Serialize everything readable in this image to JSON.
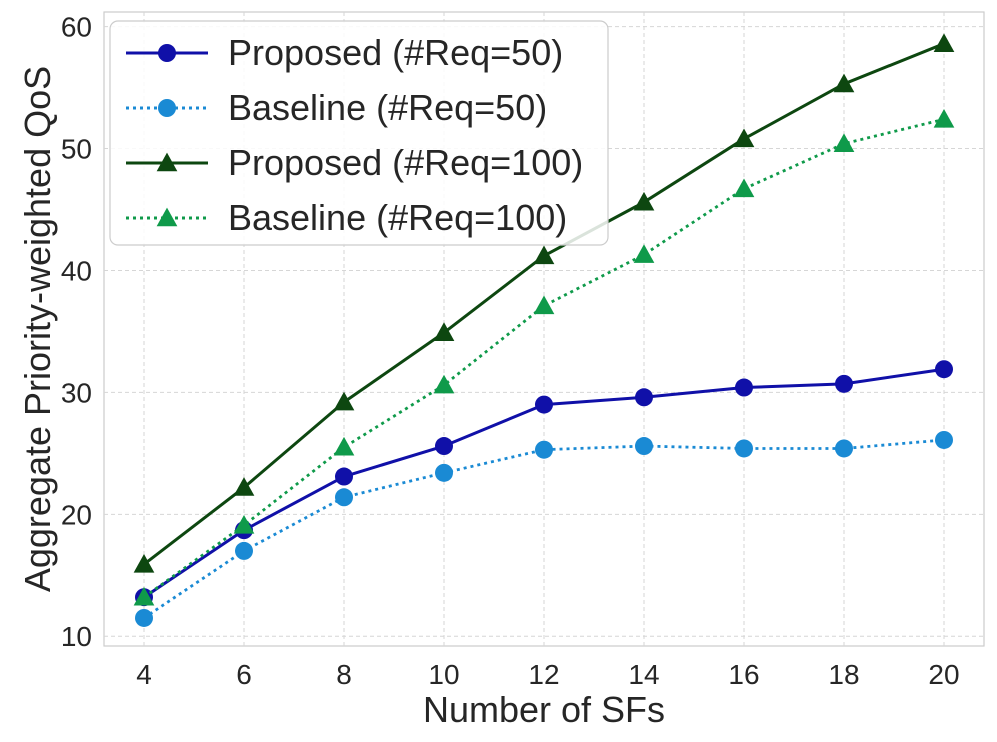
{
  "chart_data": {
    "type": "line",
    "title": "",
    "xlabel": "Number of SFs",
    "ylabel": "Aggregate Priority-weighted QoS",
    "x": [
      4,
      6,
      8,
      10,
      12,
      14,
      16,
      18,
      20
    ],
    "xticks": [
      "4",
      "6",
      "8",
      "10",
      "12",
      "14",
      "16",
      "18",
      "20"
    ],
    "yticks": [
      "10",
      "20",
      "30",
      "40",
      "50",
      "60"
    ],
    "xlim": [
      3.2,
      20.8
    ],
    "ylim": [
      9.2,
      61.2
    ],
    "grid": true,
    "legend_position": "top-left",
    "series": [
      {
        "name": "Proposed (#Req=50)",
        "values": [
          13.2,
          18.7,
          23.1,
          25.6,
          29.0,
          29.6,
          30.4,
          30.7,
          31.9
        ],
        "color": "#1010a8",
        "line_style": "solid",
        "marker": "circle"
      },
      {
        "name": "Baseline (#Req=50)",
        "values": [
          11.5,
          17.0,
          21.4,
          23.4,
          25.3,
          25.6,
          25.4,
          25.4,
          26.1
        ],
        "color": "#1a8ad4",
        "line_style": "dotted",
        "marker": "circle"
      },
      {
        "name": "Proposed (#Req=100)",
        "values": [
          15.9,
          22.2,
          29.2,
          34.9,
          41.2,
          45.6,
          50.8,
          55.3,
          58.6
        ],
        "color": "#0d4710",
        "line_style": "solid",
        "marker": "triangle"
      },
      {
        "name": "Baseline (#Req=100)",
        "values": [
          13.2,
          19.1,
          25.5,
          30.6,
          37.1,
          41.3,
          46.7,
          50.4,
          52.4
        ],
        "color": "#0f9a4a",
        "line_style": "dotted",
        "marker": "triangle"
      }
    ]
  }
}
